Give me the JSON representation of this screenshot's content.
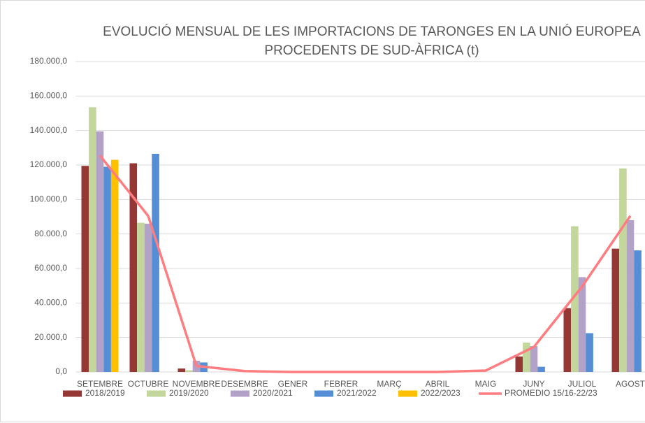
{
  "chart_data": {
    "type": "bar",
    "title": [
      "EVOLUCIÓ MENSUAL DE LES IMPORTACIONS DE TARONGES EN LA UNIÓ EUROPEA",
      "PROCEDENTS DE SUD-ÀFRICA (t)"
    ],
    "categories": [
      "SETEMBRE",
      "OCTUBRE",
      "NOVEMBRE",
      "DESEMBRE",
      "GENER",
      "FEBRER",
      "MARÇ",
      "ABRIL",
      "MAIG",
      "JUNY",
      "JULIOL",
      "AGOST"
    ],
    "series": [
      {
        "name": "2018/2019",
        "color": "#953735",
        "values": [
          119500,
          121000,
          2000,
          0,
          0,
          0,
          0,
          0,
          0,
          9000,
          37000,
          71500
        ]
      },
      {
        "name": "2019/2020",
        "color": "#c3d69b",
        "values": [
          153500,
          86500,
          1000,
          0,
          0,
          0,
          0,
          0,
          0,
          17000,
          84500,
          118000
        ]
      },
      {
        "name": "2020/2021",
        "color": "#b3a2c7",
        "values": [
          139500,
          86000,
          6500,
          0,
          0,
          0,
          0,
          0,
          0,
          15000,
          55000,
          88000
        ]
      },
      {
        "name": "2021/2022",
        "color": "#558ed5",
        "values": [
          119000,
          126500,
          5500,
          0,
          0,
          0,
          0,
          0,
          0,
          3000,
          22500,
          70500
        ]
      },
      {
        "name": "2022/2023",
        "color": "#ffc000",
        "values": [
          123000,
          null,
          null,
          null,
          null,
          null,
          null,
          null,
          null,
          null,
          null,
          null
        ]
      },
      {
        "name": "PROMEDIO 15/16-22/23",
        "color": "#ff7c80",
        "type": "line",
        "values": [
          125500,
          90500,
          3500,
          500,
          0,
          0,
          0,
          0,
          800,
          14500,
          49500,
          90500
        ]
      }
    ],
    "ylim": [
      0,
      180000
    ],
    "yticks": [
      {
        "value": 0,
        "label": "0,0"
      },
      {
        "value": 20000,
        "label": "20.000,0"
      },
      {
        "value": 40000,
        "label": "40.000,0"
      },
      {
        "value": 60000,
        "label": "60.000,0"
      },
      {
        "value": 80000,
        "label": "80.000,0"
      },
      {
        "value": 100000,
        "label": "100.000,0"
      },
      {
        "value": 120000,
        "label": "120.000,0"
      },
      {
        "value": 140000,
        "label": "140.000,0"
      },
      {
        "value": 160000,
        "label": "160.000,0"
      },
      {
        "value": 180000,
        "label": "180.000,0"
      }
    ],
    "grid": true
  }
}
